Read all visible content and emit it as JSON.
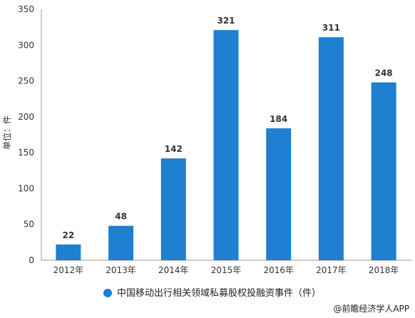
{
  "chart_data": {
    "type": "bar",
    "categories": [
      "2012年",
      "2013年",
      "2014年",
      "2015年",
      "2016年",
      "2017年",
      "2018年"
    ],
    "series": [
      {
        "name": "中国移动出行相关领域私募股权投融资事件（件）",
        "values": [
          22,
          48,
          142,
          321,
          184,
          311,
          248
        ],
        "color": "#1f7fd0"
      }
    ],
    "ylabel": "单位：件",
    "ylim": [
      0,
      350
    ],
    "yticks": [
      0,
      50,
      100,
      150,
      200,
      250,
      300,
      350
    ],
    "data_labels": [
      "22",
      "48",
      "142",
      "321",
      "184",
      "311",
      "248"
    ],
    "legend_position": "bottom",
    "grid": false
  },
  "credit": "@前瞻经济学人APP"
}
